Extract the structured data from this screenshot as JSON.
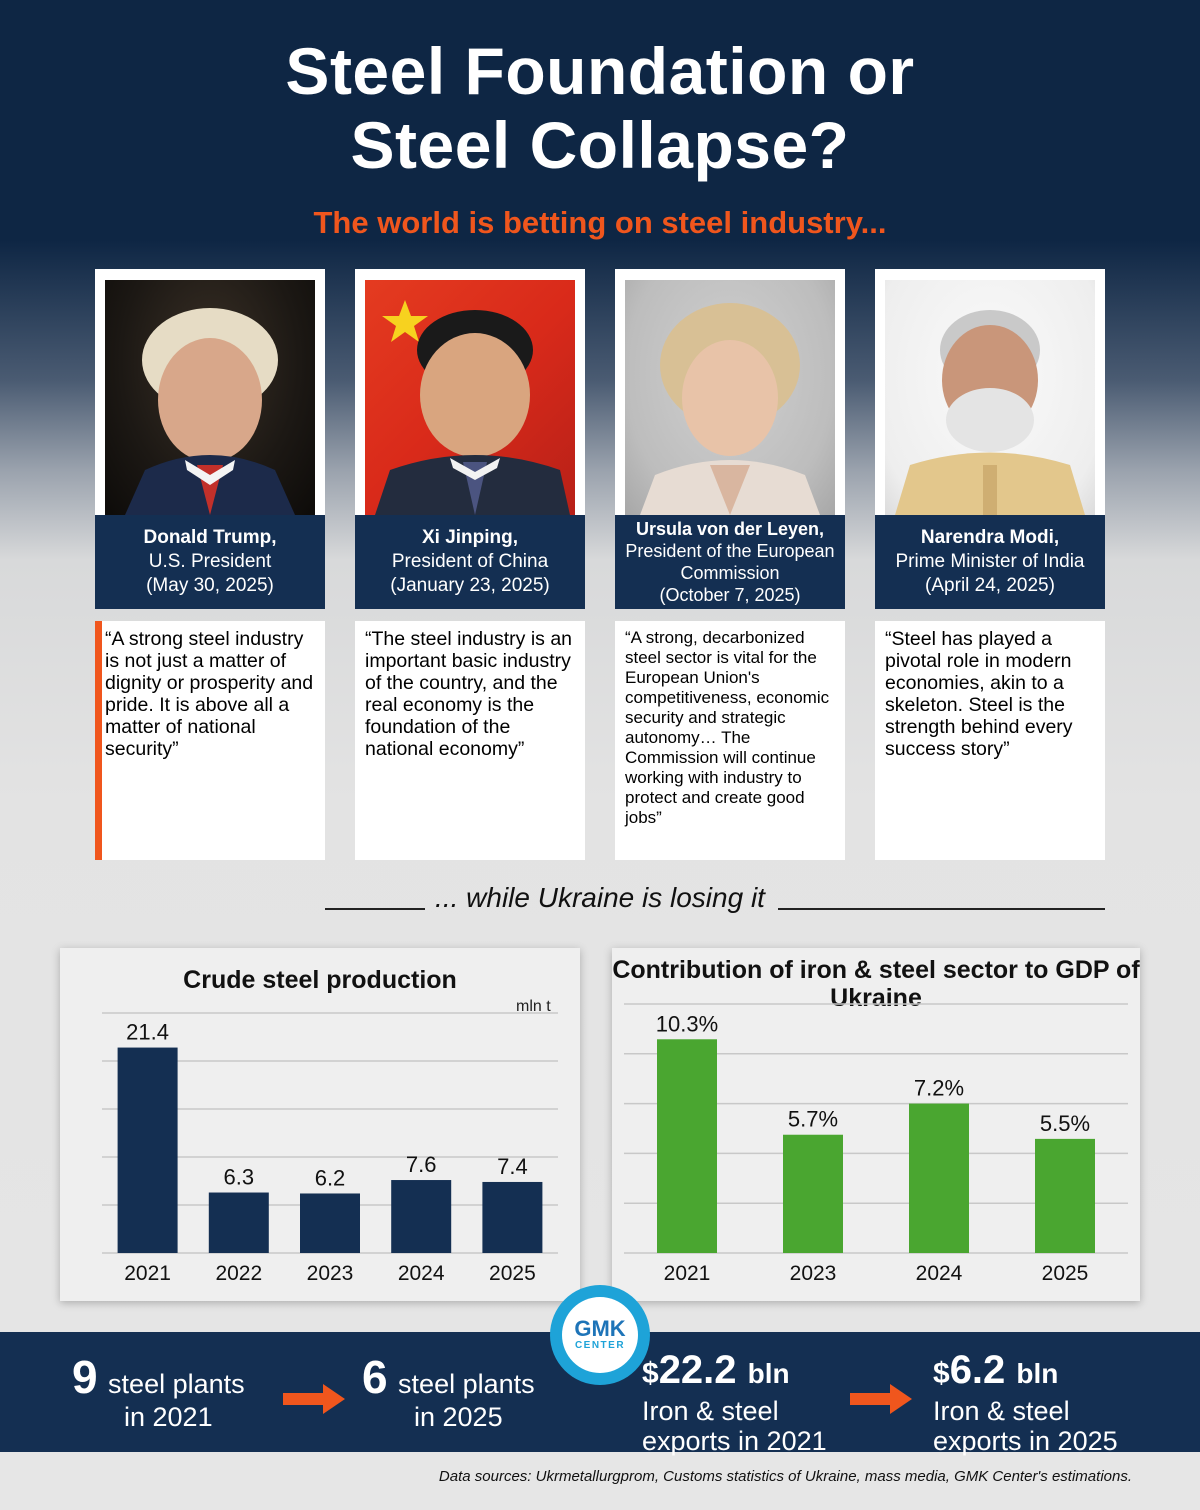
{
  "header": {
    "title_line1": "Steel Foundation or",
    "title_line2": "Steel Collapse?",
    "subtitle": "The world is betting on steel industry..."
  },
  "leaders": [
    {
      "name": "Donald Trump,",
      "role": "U.S. President",
      "date": "(May 30, 2025)",
      "quote": "“A strong steel industry is not just a matter of dignity or prosperity and pride. It is above all a matter of national security”"
    },
    {
      "name": "Xi Jinping,",
      "role": "President of China",
      "date": "(January 23, 2025)",
      "quote": "“The steel industry is an important basic industry of the country, and the real economy is the foundation of the national economy”"
    },
    {
      "name": "Ursula von der Leyen,",
      "role": "President of the European Commission",
      "date": "(October 7, 2025)",
      "quote": "“A strong, decarbonized steel sector is vital for the European Union's competitiveness, economic security and strategic autonomy… The Commission will continue working with industry to protect and create good jobs”"
    },
    {
      "name": "Narendra Modi,",
      "role": "Prime Minister of India",
      "date": "(April 24, 2025)",
      "quote": "“Steel has played a pivotal role in modern economies, akin to a skeleton. Steel is the strength behind every success story”"
    }
  ],
  "section_caption": "... while Ukraine is losing it",
  "chart_data": [
    {
      "type": "bar",
      "title": "Crude steel production",
      "unit": "mln t",
      "categories": [
        "2021",
        "2022",
        "2023",
        "2024",
        "2025"
      ],
      "values": [
        21.4,
        6.3,
        6.2,
        7.6,
        7.4
      ],
      "value_labels": [
        "21.4",
        "6.3",
        "6.2",
        "7.6",
        "7.4"
      ],
      "ylim": [
        0,
        25
      ],
      "grid": true,
      "color": "#142f52"
    },
    {
      "type": "bar",
      "title": "Contribution of iron & steel sector to GDP of Ukraine",
      "categories": [
        "2021",
        "2023",
        "2024",
        "2025"
      ],
      "values": [
        10.3,
        5.7,
        7.2,
        5.5
      ],
      "value_labels": [
        "10.3%",
        "5.7%",
        "7.2%",
        "5.5%"
      ],
      "ylim": [
        0,
        12
      ],
      "grid": true,
      "color": "#4aa630"
    }
  ],
  "stats": {
    "plants_2021_num": "9",
    "plants_2021_text_1": "steel plants",
    "plants_2021_text_2": "in 2021",
    "plants_2025_num": "6",
    "plants_2025_text_1": "steel plants",
    "plants_2025_text_2": "in 2025",
    "exports_2021_currency": "$",
    "exports_2021_value": "22.2",
    "exports_2021_unit": "bln",
    "exports_2021_text_1": "Iron & steel",
    "exports_2021_text_2": "exports in 2021",
    "exports_2025_currency": "$",
    "exports_2025_value": "6.2",
    "exports_2025_unit": "bln",
    "exports_2025_text_1": "Iron & steel",
    "exports_2025_text_2": "exports in 2025"
  },
  "logo": {
    "line1": "GMK",
    "line2": "CENTER"
  },
  "sources": "Data sources: Ukrmetallurgprom, Customs statistics of Ukraine, mass media, GMK Center's estimations.",
  "colors": {
    "navy": "#142f52",
    "orange": "#f0561d",
    "green": "#4aa630",
    "logo_blue": "#1ea3d8"
  },
  "icons": [
    "arrow-right-icon",
    "gmk-center-logo"
  ]
}
